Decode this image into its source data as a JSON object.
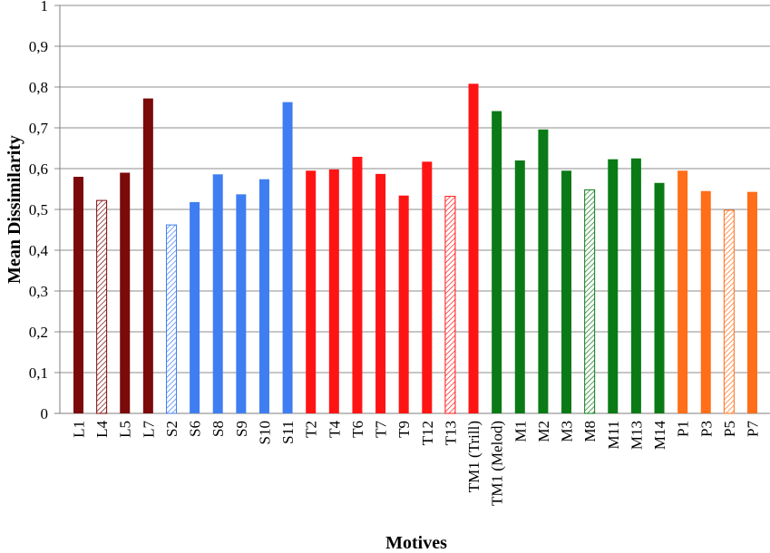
{
  "chart_data": {
    "type": "bar",
    "xlabel": "Motives",
    "ylabel": "Mean Dissimilarity",
    "ylim": [
      0,
      1
    ],
    "ytick_step": 0.1,
    "ytick_labels": [
      "0",
      "0,1",
      "0,2",
      "0,3",
      "0,4",
      "0,5",
      "0,6",
      "0,7",
      "0,8",
      "0,9",
      "1"
    ],
    "grid": "horizontal",
    "legend": "none",
    "colors": {
      "L": "#7b0a0a",
      "S": "#3f7ef2",
      "T": "#ff1414",
      "M": "#0a7a16",
      "P": "#ff6e19"
    },
    "bars": [
      {
        "label": "L1",
        "value": 0.58,
        "group": "L",
        "hatched": false
      },
      {
        "label": "L4",
        "value": 0.522,
        "group": "L",
        "hatched": true
      },
      {
        "label": "L5",
        "value": 0.59,
        "group": "L",
        "hatched": false
      },
      {
        "label": "L7",
        "value": 0.772,
        "group": "L",
        "hatched": false
      },
      {
        "label": "S2",
        "value": 0.462,
        "group": "S",
        "hatched": true
      },
      {
        "label": "S6",
        "value": 0.518,
        "group": "S",
        "hatched": false
      },
      {
        "label": "S8",
        "value": 0.586,
        "group": "S",
        "hatched": false
      },
      {
        "label": "S9",
        "value": 0.537,
        "group": "S",
        "hatched": false
      },
      {
        "label": "S10",
        "value": 0.574,
        "group": "S",
        "hatched": false
      },
      {
        "label": "S11",
        "value": 0.763,
        "group": "S",
        "hatched": false
      },
      {
        "label": "T2",
        "value": 0.595,
        "group": "T",
        "hatched": false
      },
      {
        "label": "T4",
        "value": 0.598,
        "group": "T",
        "hatched": false
      },
      {
        "label": "T6",
        "value": 0.629,
        "group": "T",
        "hatched": false
      },
      {
        "label": "T7",
        "value": 0.587,
        "group": "T",
        "hatched": false
      },
      {
        "label": "T9",
        "value": 0.534,
        "group": "T",
        "hatched": false
      },
      {
        "label": "T12",
        "value": 0.617,
        "group": "T",
        "hatched": false
      },
      {
        "label": "T13",
        "value": 0.532,
        "group": "T",
        "hatched": true
      },
      {
        "label": "TM1 (Trill)",
        "value": 0.808,
        "group": "T",
        "hatched": false
      },
      {
        "label": "TM1 (Melod)",
        "value": 0.741,
        "group": "M",
        "hatched": false
      },
      {
        "label": "M1",
        "value": 0.62,
        "group": "M",
        "hatched": false
      },
      {
        "label": "M2",
        "value": 0.696,
        "group": "M",
        "hatched": false
      },
      {
        "label": "M3",
        "value": 0.595,
        "group": "M",
        "hatched": false
      },
      {
        "label": "M8",
        "value": 0.548,
        "group": "M",
        "hatched": true
      },
      {
        "label": "M11",
        "value": 0.623,
        "group": "M",
        "hatched": false
      },
      {
        "label": "M13",
        "value": 0.625,
        "group": "M",
        "hatched": false
      },
      {
        "label": "M14",
        "value": 0.565,
        "group": "M",
        "hatched": false
      },
      {
        "label": "P1",
        "value": 0.595,
        "group": "P",
        "hatched": false
      },
      {
        "label": "P3",
        "value": 0.545,
        "group": "P",
        "hatched": false
      },
      {
        "label": "P5",
        "value": 0.498,
        "group": "P",
        "hatched": true
      },
      {
        "label": "P7",
        "value": 0.543,
        "group": "P",
        "hatched": false
      }
    ]
  }
}
